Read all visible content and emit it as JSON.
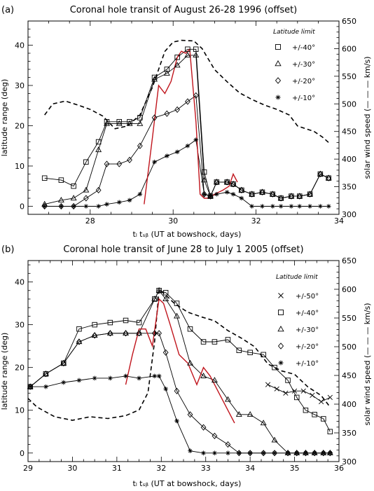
{
  "chart_data": [
    {
      "type": "line",
      "panel_label": "(a)",
      "title": "Coronal hole transit of August 26-28 1996 (offset)",
      "xlabel": "tₗ tₛᵦ (UT at bowshock, days)",
      "ylabel": "latitude range (deg)",
      "y2label": "solar wind speed (— — — km/s)",
      "xlim": [
        26.5,
        34
      ],
      "ylim": [
        -2,
        46
      ],
      "y2lim": [
        300,
        650
      ],
      "x_ticks": [
        "28",
        "30",
        "32",
        "34"
      ],
      "y_ticks": [
        "0",
        "10",
        "20",
        "30",
        "40"
      ],
      "y2_ticks": [
        "300",
        "350",
        "400",
        "450",
        "500",
        "550",
        "600",
        "650"
      ],
      "legend_title": "Latitude limit",
      "legend_position": "top-right",
      "series": [
        {
          "name": "+/-40°",
          "marker": "square",
          "x": [
            26.9,
            27.3,
            27.6,
            27.9,
            28.2,
            28.4,
            28.7,
            28.95,
            29.2,
            29.55,
            29.85,
            30.1,
            30.35,
            30.55,
            30.75,
            30.9,
            31.05,
            31.3,
            31.45,
            31.65,
            31.9,
            32.15,
            32.4,
            32.6,
            32.85,
            33.05,
            33.3,
            33.55,
            33.75
          ],
          "y": [
            7,
            6.5,
            5,
            11,
            16,
            21,
            21,
            21,
            22,
            32,
            34,
            37,
            39,
            39,
            8.5,
            2.5,
            6,
            6,
            5.5,
            4,
            3,
            3.5,
            3,
            2,
            2.5,
            2.5,
            3,
            8,
            7
          ]
        },
        {
          "name": "+/-30°",
          "marker": "triangle",
          "x": [
            26.9,
            27.3,
            27.6,
            27.9,
            28.2,
            28.4,
            28.7,
            28.95,
            29.2,
            29.55,
            29.85,
            30.1,
            30.35,
            30.55,
            30.75,
            30.9,
            31.05,
            31.3,
            31.45,
            31.65,
            31.9,
            32.15,
            32.4,
            32.6,
            32.85,
            33.05,
            33.3,
            33.55,
            33.75
          ],
          "y": [
            0.5,
            1.5,
            2,
            4,
            14,
            20.5,
            20.5,
            20.5,
            20.5,
            31.5,
            33,
            35,
            37.5,
            37.5,
            6.5,
            2.5,
            6,
            6,
            5.5,
            4,
            3,
            3.5,
            3,
            2,
            2.5,
            2.5,
            3,
            8,
            7
          ]
        },
        {
          "name": "+/-20°",
          "marker": "diamond",
          "x": [
            26.9,
            27.3,
            27.6,
            27.9,
            28.2,
            28.4,
            28.7,
            28.95,
            29.2,
            29.55,
            29.85,
            30.1,
            30.35,
            30.55,
            30.75,
            30.9,
            31.05,
            31.3,
            31.45,
            31.65,
            31.9,
            32.15,
            32.4,
            32.6,
            32.85,
            33.05,
            33.3,
            33.55,
            33.75
          ],
          "y": [
            0,
            0,
            0,
            2,
            4,
            10.5,
            10.5,
            11.5,
            15,
            22,
            23,
            24,
            26,
            27.5,
            3,
            2.5,
            6,
            6,
            5.5,
            4,
            3,
            3.5,
            3,
            2,
            2.5,
            2.5,
            3,
            8,
            7
          ]
        },
        {
          "name": "+/-10°",
          "marker": "asterisk",
          "x": [
            26.9,
            27.3,
            27.6,
            27.9,
            28.2,
            28.4,
            28.7,
            28.95,
            29.2,
            29.55,
            29.85,
            30.1,
            30.35,
            30.55,
            30.75,
            30.9,
            31.05,
            31.3,
            31.45,
            31.65,
            31.9,
            32.15,
            32.4,
            32.6,
            32.85,
            33.05,
            33.3,
            33.55,
            33.75
          ],
          "y": [
            0,
            0,
            0,
            0,
            0,
            0.5,
            1,
            1.5,
            3,
            11,
            12.5,
            13.5,
            15,
            16.5,
            3,
            2.5,
            3,
            3.5,
            3,
            2,
            0,
            0,
            0,
            0,
            0,
            0,
            0,
            0,
            0
          ]
        }
      ],
      "red_curve": {
        "x": [
          29.3,
          29.5,
          29.65,
          29.8,
          29.95,
          30.1,
          30.2,
          30.3,
          30.4,
          30.55,
          30.65,
          30.75,
          30.85,
          31.0,
          31.2,
          31.35,
          31.45,
          31.55
        ],
        "y": [
          0.5,
          17,
          30,
          28,
          31,
          37,
          38.5,
          38,
          39,
          21,
          3,
          2,
          2,
          3,
          4,
          5,
          8,
          6
        ]
      },
      "speed_curve": {
        "x": [
          26.9,
          27.1,
          27.4,
          27.7,
          28.0,
          28.3,
          28.6,
          28.9,
          29.2,
          29.5,
          29.8,
          30.0,
          30.2,
          30.5,
          30.7,
          31.0,
          31.3,
          31.6,
          31.9,
          32.2,
          32.5,
          32.8,
          33.0,
          33.2,
          33.4,
          33.6,
          33.75
        ],
        "y": [
          480,
          500,
          505,
          498,
          490,
          478,
          455,
          460,
          480,
          530,
          595,
          612,
          615,
          614,
          600,
          562,
          540,
          520,
          508,
          498,
          490,
          480,
          460,
          455,
          450,
          440,
          430
        ]
      }
    },
    {
      "type": "line",
      "panel_label": "(b)",
      "title": "Coronal hole transit of June 28 to July 1 2005 (offset)",
      "xlabel": "tₗ tₛᵦ (UT at bowshock, days)",
      "ylabel": "latitude range (deg)",
      "y2label": "solar wind speed (— — — km/s)",
      "xlim": [
        29,
        36
      ],
      "ylim": [
        -2,
        45
      ],
      "y2lim": [
        300,
        650
      ],
      "x_ticks": [
        "29",
        "30",
        "31",
        "32",
        "33",
        "34",
        "35",
        "36"
      ],
      "y_ticks": [
        "0",
        "10",
        "20",
        "30",
        "40"
      ],
      "y2_ticks": [
        "300",
        "350",
        "400",
        "450",
        "500",
        "550",
        "600",
        "650"
      ],
      "legend_title": "Latitude limit",
      "legend_position": "top-right",
      "series": [
        {
          "name": "+/-50°",
          "marker": "x",
          "x": [
            34.4,
            34.6,
            34.8,
            35.0,
            35.2,
            35.4,
            35.6,
            35.8
          ],
          "y": [
            16,
            15,
            14,
            14.5,
            14.5,
            13.5,
            12,
            13
          ]
        },
        {
          "name": "+/-40°",
          "marker": "square",
          "x": [
            29.05,
            29.4,
            29.8,
            30.15,
            30.5,
            30.85,
            31.2,
            31.5,
            31.85,
            31.95,
            32.1,
            32.35,
            32.65,
            32.95,
            33.2,
            33.5,
            33.75,
            34.0,
            34.3,
            34.55,
            34.85,
            35.05,
            35.25,
            35.45,
            35.65,
            35.8
          ],
          "y": [
            15.5,
            18.5,
            21,
            29,
            30,
            30.5,
            31,
            30.5,
            36,
            38,
            37.5,
            35,
            29,
            26,
            26,
            26.5,
            24,
            23.5,
            23,
            20,
            17,
            13,
            10,
            9,
            8,
            5
          ]
        },
        {
          "name": "+/-30°",
          "marker": "triangle",
          "x": [
            29.05,
            29.4,
            29.8,
            30.15,
            30.5,
            30.85,
            31.2,
            31.5,
            31.85,
            31.95,
            32.1,
            32.35,
            32.65,
            32.95,
            33.2,
            33.5,
            33.75,
            34.0,
            34.3,
            34.55,
            34.85,
            35.05,
            35.25,
            35.45,
            35.65,
            35.8
          ],
          "y": [
            15.5,
            18.5,
            21,
            26,
            27.5,
            28,
            28,
            28,
            36,
            38,
            36,
            32,
            21,
            18,
            17,
            12.5,
            9,
            9,
            7,
            3,
            0,
            0,
            0,
            0,
            0,
            0
          ]
        },
        {
          "name": "+/-20°",
          "marker": "diamond",
          "x": [
            29.05,
            29.4,
            29.8,
            30.15,
            30.5,
            30.85,
            31.2,
            31.5,
            31.85,
            31.95,
            32.1,
            32.35,
            32.65,
            32.95,
            33.2,
            33.5,
            33.75,
            34.0,
            34.3,
            34.55,
            34.85,
            35.05,
            35.25,
            35.45,
            35.65,
            35.8
          ],
          "y": [
            15.5,
            18.5,
            21,
            26,
            27.5,
            28,
            28,
            28,
            28,
            28,
            23.5,
            14.5,
            9,
            6,
            4,
            2,
            0,
            0,
            0,
            0,
            0,
            0,
            0,
            0,
            0,
            0
          ]
        },
        {
          "name": "+/-10°",
          "marker": "asterisk",
          "x": [
            29.05,
            29.4,
            29.8,
            30.15,
            30.5,
            30.85,
            31.2,
            31.5,
            31.85,
            31.95,
            32.1,
            32.35,
            32.65,
            32.95,
            33.2,
            33.5,
            33.75,
            34.0,
            34.3,
            34.55,
            34.85,
            35.05,
            35.25,
            35.45,
            35.65,
            35.8
          ],
          "y": [
            15.5,
            15.5,
            16.5,
            17,
            17.5,
            17.5,
            18,
            17.5,
            18,
            18,
            15,
            7.5,
            0.5,
            0,
            0,
            0,
            0,
            0,
            0,
            0,
            0,
            0,
            0,
            0,
            0,
            0
          ]
        }
      ],
      "red_curve": {
        "x": [
          31.2,
          31.35,
          31.5,
          31.65,
          31.8,
          31.95,
          32.05,
          32.2,
          32.4,
          32.6,
          32.8,
          32.95,
          33.1,
          33.3,
          33.5,
          33.65
        ],
        "y": [
          16,
          23,
          29,
          29,
          25,
          36,
          35,
          30,
          23,
          21,
          16,
          20,
          18,
          14,
          10,
          7
        ]
      },
      "speed_curve": {
        "x": [
          29.0,
          29.2,
          29.6,
          30.0,
          30.4,
          30.8,
          31.2,
          31.5,
          31.7,
          31.85,
          31.95,
          32.1,
          32.3,
          32.6,
          32.9,
          33.2,
          33.5,
          33.8,
          34.1,
          34.4,
          34.7,
          35.0,
          35.3,
          35.6,
          35.8
        ],
        "y": [
          410,
          395,
          378,
          372,
          378,
          375,
          380,
          390,
          420,
          510,
          600,
          590,
          575,
          560,
          552,
          545,
          528,
          515,
          500,
          470,
          458,
          452,
          430,
          415,
          395
        ]
      }
    }
  ]
}
